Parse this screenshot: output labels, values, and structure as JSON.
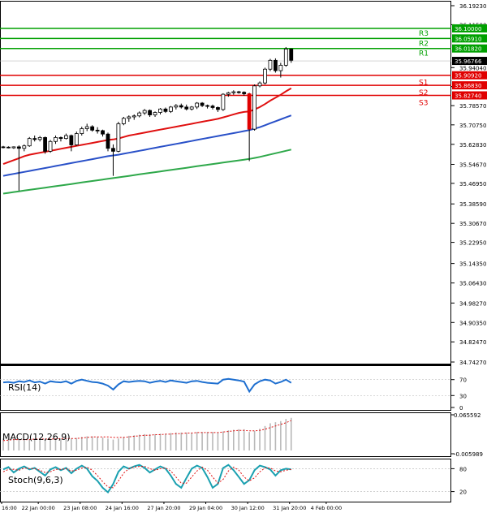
{
  "chart_data": {
    "type": "candlestick",
    "main": {
      "ylim": [
        34.7427,
        36.1923
      ],
      "yticks": [
        "36.19230",
        "36.11500",
        "35.94040",
        "35.86310",
        "35.78570",
        "35.70750",
        "35.62830",
        "35.54670",
        "35.46950",
        "35.38590",
        "35.30670",
        "35.22950",
        "35.14350",
        "35.06430",
        "34.98270",
        "34.90350",
        "34.82470",
        "34.74270"
      ],
      "current_price": "35.96766",
      "candles": [
        [
          35.618,
          35.622,
          35.612,
          35.617
        ],
        [
          35.617,
          35.62,
          35.612,
          35.614
        ],
        [
          35.614,
          35.62,
          35.61,
          35.618
        ],
        [
          35.618,
          35.624,
          35.44,
          35.612
        ],
        [
          35.612,
          35.628,
          35.6,
          35.622
        ],
        [
          35.622,
          35.658,
          35.618,
          35.652
        ],
        [
          35.652,
          35.664,
          35.64,
          35.648
        ],
        [
          35.648,
          35.662,
          35.64,
          35.656
        ],
        [
          35.656,
          35.66,
          35.59,
          35.6
        ],
        [
          35.6,
          35.646,
          35.594,
          35.64
        ],
        [
          35.64,
          35.664,
          35.63,
          35.656
        ],
        [
          35.656,
          35.66,
          35.64,
          35.652
        ],
        [
          35.652,
          35.672,
          35.648,
          35.664
        ],
        [
          35.664,
          35.668,
          35.6,
          35.626
        ],
        [
          35.626,
          35.68,
          35.622,
          35.672
        ],
        [
          35.672,
          35.7,
          35.664,
          35.692
        ],
        [
          35.692,
          35.712,
          35.682,
          35.7
        ],
        [
          35.7,
          35.706,
          35.68,
          35.686
        ],
        [
          35.686,
          35.698,
          35.672,
          35.684
        ],
        [
          35.684,
          35.688,
          35.66,
          35.67
        ],
        [
          35.67,
          35.676,
          35.6,
          35.612
        ],
        [
          35.612,
          35.628,
          35.5,
          35.6
        ],
        [
          35.6,
          35.72,
          35.596,
          35.712
        ],
        [
          35.712,
          35.74,
          35.706,
          35.734
        ],
        [
          35.734,
          35.746,
          35.72,
          35.74
        ],
        [
          35.74,
          35.75,
          35.728,
          35.744
        ],
        [
          35.744,
          35.762,
          35.738,
          35.756
        ],
        [
          35.756,
          35.772,
          35.748,
          35.766
        ],
        [
          35.766,
          35.77,
          35.74,
          35.748
        ],
        [
          35.748,
          35.762,
          35.74,
          35.758
        ],
        [
          35.758,
          35.776,
          35.75,
          35.772
        ],
        [
          35.772,
          35.778,
          35.756,
          35.762
        ],
        [
          35.762,
          35.784,
          35.756,
          35.78
        ],
        [
          35.78,
          35.792,
          35.77,
          35.786
        ],
        [
          35.786,
          35.794,
          35.774,
          35.78
        ],
        [
          35.78,
          35.79,
          35.766,
          35.772
        ],
        [
          35.772,
          35.784,
          35.766,
          35.78
        ],
        [
          35.78,
          35.8,
          35.772,
          35.796
        ],
        [
          35.796,
          35.8,
          35.78,
          35.786
        ],
        [
          35.786,
          35.79,
          35.774,
          35.784
        ],
        [
          35.784,
          35.79,
          35.77,
          35.778
        ],
        [
          35.778,
          35.782,
          35.76,
          35.77
        ],
        [
          35.77,
          35.836,
          35.764,
          35.832
        ],
        [
          35.832,
          35.842,
          35.822,
          35.838
        ],
        [
          35.838,
          35.848,
          35.83,
          35.842
        ],
        [
          35.842,
          35.846,
          35.834,
          35.84
        ],
        [
          35.84,
          35.844,
          35.826,
          35.834
        ],
        [
          35.834,
          35.838,
          35.56,
          35.69
        ],
        [
          35.69,
          35.872,
          35.684,
          35.866
        ],
        [
          35.866,
          35.884,
          35.86,
          35.878
        ],
        [
          35.878,
          35.94,
          35.872,
          35.934
        ],
        [
          35.934,
          35.976,
          35.926,
          35.97
        ],
        [
          35.97,
          35.978,
          35.92,
          35.928
        ],
        [
          35.928,
          35.96,
          35.9,
          35.95
        ],
        [
          35.95,
          36.024,
          35.944,
          36.016
        ],
        [
          36.016,
          36.018,
          35.96,
          35.97
        ]
      ],
      "ma_red": [
        35.548,
        35.556,
        35.564,
        35.572,
        35.58,
        35.586,
        35.59,
        35.594,
        35.598,
        35.602,
        35.606,
        35.61,
        35.614,
        35.618,
        35.622,
        35.626,
        35.63,
        35.634,
        35.638,
        35.642,
        35.646,
        35.648,
        35.652,
        35.658,
        35.664,
        35.668,
        35.672,
        35.676,
        35.68,
        35.684,
        35.688,
        35.692,
        35.696,
        35.7,
        35.704,
        35.708,
        35.712,
        35.716,
        35.72,
        35.724,
        35.728,
        35.732,
        35.738,
        35.744,
        35.75,
        35.756,
        35.76,
        35.762,
        35.77,
        35.78,
        35.792,
        35.806,
        35.818,
        35.83,
        35.844,
        35.856
      ],
      "ma_blue": [
        35.5,
        35.504,
        35.508,
        35.512,
        35.516,
        35.52,
        35.524,
        35.528,
        35.532,
        35.536,
        35.54,
        35.544,
        35.548,
        35.552,
        35.556,
        35.56,
        35.564,
        35.568,
        35.572,
        35.576,
        35.58,
        35.583,
        35.586,
        35.59,
        35.594,
        35.598,
        35.602,
        35.606,
        35.61,
        35.614,
        35.618,
        35.622,
        35.626,
        35.63,
        35.634,
        35.638,
        35.642,
        35.646,
        35.65,
        35.654,
        35.658,
        35.662,
        35.666,
        35.67,
        35.674,
        35.678,
        35.682,
        35.686,
        35.692,
        35.698,
        35.706,
        35.714,
        35.722,
        35.73,
        35.738,
        35.746
      ],
      "ma_green": [
        35.428,
        35.431,
        35.434,
        35.437,
        35.44,
        35.443,
        35.446,
        35.449,
        35.452,
        35.455,
        35.458,
        35.461,
        35.464,
        35.467,
        35.47,
        35.473,
        35.476,
        35.479,
        35.482,
        35.485,
        35.488,
        35.491,
        35.494,
        35.497,
        35.5,
        35.503,
        35.506,
        35.509,
        35.512,
        35.515,
        35.518,
        35.521,
        35.524,
        35.527,
        35.53,
        35.533,
        35.536,
        35.539,
        35.542,
        35.545,
        35.548,
        35.551,
        35.554,
        35.557,
        35.56,
        35.563,
        35.566,
        35.569,
        35.573,
        35.577,
        35.582,
        35.587,
        35.592,
        35.597,
        35.602,
        35.607
      ],
      "levels": [
        {
          "name": "R3",
          "value": "36.10000",
          "color": "#00a000"
        },
        {
          "name": "R2",
          "value": "36.05910",
          "color": "#00a000"
        },
        {
          "name": "R1",
          "value": "36.01820",
          "color": "#00a000"
        },
        {
          "name": "S1",
          "value": "35.90920",
          "color": "#e00000"
        },
        {
          "name": "S2",
          "value": "35.86830",
          "color": "#e00000"
        },
        {
          "name": "S3",
          "value": "35.82740",
          "color": "#e00000"
        }
      ]
    },
    "x_labels": [
      "16:00",
      "22 Jan 00:00",
      "23 Jan 08:00",
      "24 Jan 16:00",
      "27 Jan 20:00",
      "29 Jan 04:00",
      "30 Jan 12:00",
      "31 Jan 20:00",
      "4 Feb 00:00"
    ],
    "x_label_index": [
      0,
      7,
      15,
      23,
      31,
      39,
      47,
      55,
      62
    ],
    "rsi": {
      "label": "RSI(14)",
      "ticks": [
        "70",
        "30",
        "0"
      ],
      "ylim": [
        0,
        100
      ],
      "values": [
        63,
        64,
        62,
        66,
        64,
        68,
        63,
        65,
        60,
        66,
        64,
        63,
        66,
        60,
        67,
        70,
        67,
        64,
        63,
        60,
        55,
        45,
        58,
        66,
        64,
        66,
        67,
        66,
        62,
        65,
        67,
        64,
        68,
        66,
        64,
        62,
        66,
        67,
        64,
        62,
        61,
        60,
        70,
        72,
        70,
        68,
        65,
        40,
        58,
        66,
        70,
        68,
        60,
        64,
        70,
        62
      ]
    },
    "macd": {
      "label": "MACD(12,26,9)",
      "ticks": [
        "0.065592",
        "-0.005989"
      ],
      "ylim": [
        -0.005989,
        0.065592
      ],
      "hist": [
        0.022,
        0.022,
        0.021,
        0.02,
        0.02,
        0.021,
        0.022,
        0.022,
        0.021,
        0.021,
        0.022,
        0.022,
        0.023,
        0.022,
        0.023,
        0.025,
        0.026,
        0.026,
        0.025,
        0.024,
        0.022,
        0.02,
        0.022,
        0.025,
        0.027,
        0.028,
        0.029,
        0.03,
        0.03,
        0.03,
        0.031,
        0.031,
        0.032,
        0.033,
        0.033,
        0.033,
        0.033,
        0.034,
        0.034,
        0.034,
        0.034,
        0.033,
        0.035,
        0.037,
        0.038,
        0.039,
        0.039,
        0.034,
        0.036,
        0.04,
        0.045,
        0.05,
        0.052,
        0.054,
        0.058,
        0.06
      ],
      "signal": [
        0.018,
        0.019,
        0.02,
        0.02,
        0.02,
        0.02,
        0.021,
        0.021,
        0.021,
        0.021,
        0.021,
        0.022,
        0.022,
        0.022,
        0.022,
        0.023,
        0.024,
        0.025,
        0.025,
        0.025,
        0.025,
        0.024,
        0.024,
        0.024,
        0.025,
        0.026,
        0.027,
        0.028,
        0.028,
        0.029,
        0.029,
        0.03,
        0.03,
        0.031,
        0.031,
        0.032,
        0.032,
        0.033,
        0.033,
        0.033,
        0.033,
        0.033,
        0.034,
        0.035,
        0.036,
        0.037,
        0.037,
        0.036,
        0.036,
        0.037,
        0.039,
        0.042,
        0.045,
        0.048,
        0.051,
        0.055
      ]
    },
    "stoch": {
      "label": "Stoch(9,6,3)",
      "ticks": [
        "80",
        "20"
      ],
      "ylim": [
        0,
        100
      ],
      "k": [
        78,
        84,
        70,
        80,
        86,
        78,
        82,
        72,
        62,
        78,
        84,
        76,
        82,
        68,
        80,
        88,
        80,
        60,
        48,
        30,
        18,
        40,
        72,
        86,
        80,
        86,
        90,
        82,
        70,
        78,
        86,
        80,
        62,
        40,
        30,
        56,
        80,
        88,
        82,
        58,
        30,
        40,
        82,
        90,
        76,
        58,
        40,
        50,
        76,
        88,
        84,
        78,
        62,
        76,
        80,
        78
      ],
      "d": [
        72,
        78,
        78,
        76,
        82,
        80,
        80,
        76,
        70,
        72,
        78,
        78,
        80,
        74,
        76,
        82,
        84,
        76,
        62,
        46,
        32,
        30,
        48,
        68,
        80,
        84,
        86,
        86,
        80,
        76,
        80,
        82,
        74,
        58,
        42,
        42,
        58,
        74,
        84,
        76,
        58,
        42,
        52,
        74,
        84,
        76,
        58,
        48,
        56,
        72,
        82,
        82,
        74,
        72,
        76,
        78
      ]
    }
  }
}
